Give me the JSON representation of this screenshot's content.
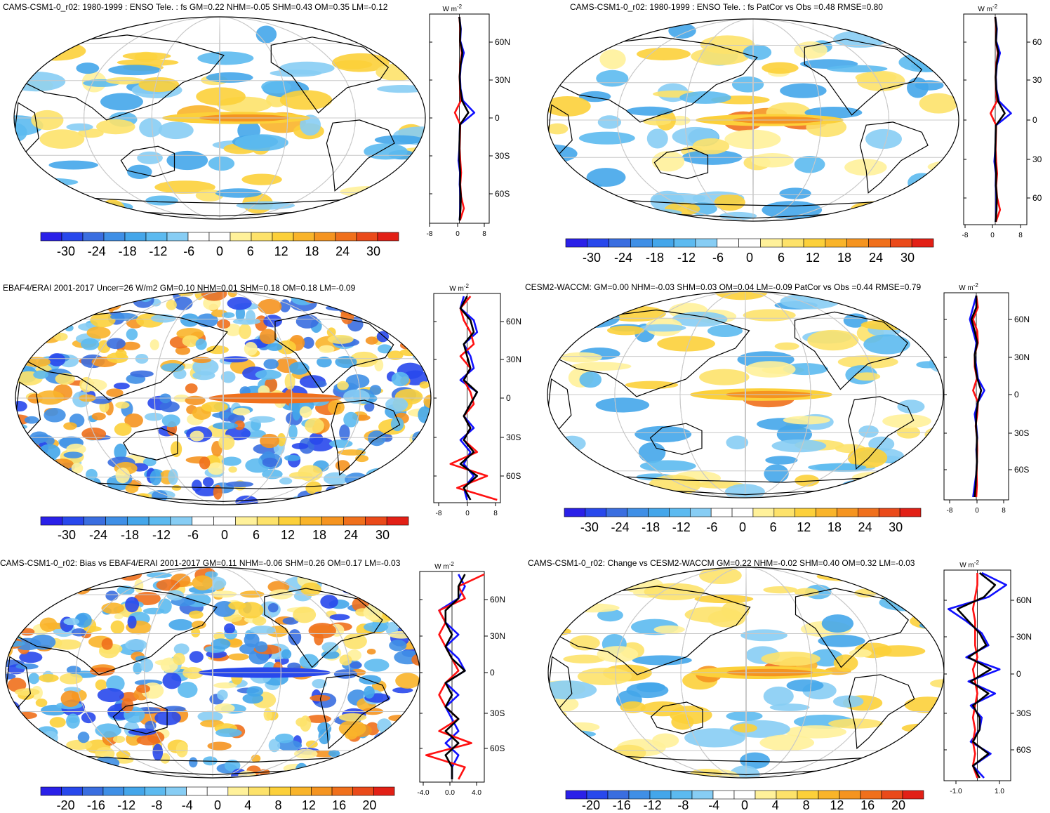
{
  "chart_data": [
    {
      "type": "heatmap",
      "title": "CAMS-CSM1-0_r02: 1980-1999 : ENSO Tele. : fs GM=0.22 NHM=-0.05 SHM=0.43 OM=0.35 LM=-0.12",
      "colorbar_ticks": [
        "-30",
        "-24",
        "-18",
        "-12",
        "-6",
        "0",
        "6",
        "12",
        "18",
        "24",
        "30"
      ],
      "levels_max": 30,
      "zonal": {
        "unit_label": "W m",
        "unit_exp": "-2",
        "lat_ticks": [
          "60N",
          "30N",
          "0",
          "30S",
          "60S"
        ],
        "x_ticks": [
          "-8",
          "0",
          "8"
        ],
        "xlim": [
          -10,
          10
        ],
        "series": [
          {
            "name": "blue",
            "color": "#1010ff",
            "values": [
              0,
              0.5,
              0.3,
              1.5,
              0.5,
              0.2,
              0.4,
              1.2,
              5.0,
              0.2,
              0.1,
              0,
              -0.3,
              0.2,
              0.1,
              0.4,
              0.3,
              0.1
            ]
          },
          {
            "name": "red",
            "color": "#ff1010",
            "values": [
              0,
              0.3,
              0.2,
              0.8,
              0.3,
              0.1,
              0.2,
              0.5,
              -1.5,
              0.3,
              0.2,
              0.1,
              0.3,
              0.6,
              0.3,
              0.6,
              1.5,
              0.2
            ]
          },
          {
            "name": "black",
            "color": "#000000",
            "values": [
              0,
              0.4,
              0.2,
              1.0,
              0.4,
              0.1,
              0.3,
              0.9,
              3.0,
              0.2,
              0.1,
              0,
              0,
              0.3,
              0.2,
              0.5,
              0.4,
              0.1
            ]
          }
        ]
      }
    },
    {
      "type": "heatmap",
      "title": "CAMS-CSM1-0_r02: 1980-1999 : ENSO Tele. : fs PatCor vs Obs =0.48 RMSE=0.80",
      "colorbar_ticks": [
        "-30",
        "-24",
        "-18",
        "-12",
        "-6",
        "0",
        "6",
        "12",
        "18",
        "24",
        "30"
      ],
      "levels_max": 30,
      "zonal": {
        "unit_label": "W m",
        "unit_exp": "-2",
        "lat_ticks": [
          "60",
          "30",
          "0",
          "30",
          "60"
        ],
        "x_ticks": [
          "-8",
          "0",
          "8"
        ],
        "xlim": [
          -10,
          10
        ],
        "series": [
          {
            "name": "blue",
            "color": "#1010ff",
            "values": [
              0,
              0.5,
              0.3,
              1.5,
              0.5,
              0.2,
              0.4,
              1.2,
              5.0,
              0.2,
              0.1,
              0,
              -0.3,
              0.2,
              0.1,
              0.4,
              0.3,
              0.1
            ]
          },
          {
            "name": "red",
            "color": "#ff1010",
            "values": [
              0,
              0.3,
              0.2,
              0.8,
              0.3,
              0.1,
              0.2,
              0.5,
              -1.5,
              0.3,
              0.2,
              0.1,
              0.3,
              0.6,
              0.3,
              0.6,
              1.5,
              0.2
            ]
          },
          {
            "name": "black",
            "color": "#000000",
            "values": [
              0,
              0.4,
              0.2,
              1.0,
              0.4,
              0.1,
              0.3,
              0.9,
              3.0,
              0.2,
              0.1,
              0,
              0,
              0.3,
              0.2,
              0.5,
              0.4,
              0.1
            ]
          }
        ]
      }
    },
    {
      "type": "heatmap",
      "title": "EBAF4/ERAI 2001-2017 Uncer=26 W/m2 GM=0.10 NHM=0.01 SHM=0.18 OM=0.18 LM=-0.09",
      "colorbar_ticks": [
        "-30",
        "-24",
        "-18",
        "-12",
        "-6",
        "0",
        "6",
        "12",
        "18",
        "24",
        "30"
      ],
      "levels_max": 30,
      "zonal": {
        "unit_label": "W m",
        "unit_exp": "-2",
        "lat_ticks": [
          "60N",
          "30N",
          "0",
          "30S",
          "60S"
        ],
        "x_ticks": [
          "-8",
          "0",
          "8"
        ],
        "xlim": [
          -10,
          10
        ],
        "series": [
          {
            "name": "blue",
            "color": "#1010ff",
            "values": [
              -1,
              -2,
              2,
              3,
              -1,
              1,
              2,
              -2,
              3,
              1,
              -1,
              2,
              -2,
              1,
              -1,
              2,
              -1,
              0
            ]
          },
          {
            "name": "red",
            "color": "#ff1010",
            "values": [
              1,
              -2,
              -1,
              1,
              2,
              -2,
              1,
              -1,
              1,
              2,
              -1,
              1,
              -1,
              3,
              -5,
              6,
              -3,
              9
            ]
          },
          {
            "name": "black",
            "color": "#000000",
            "values": [
              0,
              -2,
              1,
              2,
              -1,
              0,
              1,
              -1,
              3,
              1,
              -1,
              1,
              -1,
              2,
              -2,
              3,
              -1,
              1
            ]
          }
        ]
      }
    },
    {
      "type": "heatmap",
      "title": "CESM2-WACCM: GM=0.00 NHM=-0.03 SHM=0.03 OM=0.04 LM=-0.09 PatCor vs Obs =0.44 RMSE=0.79",
      "colorbar_ticks": [
        "-30",
        "-24",
        "-18",
        "-12",
        "-6",
        "0",
        "6",
        "12",
        "18",
        "24",
        "30"
      ],
      "levels_max": 30,
      "zonal": {
        "unit_label": "W m",
        "unit_exp": "-2",
        "lat_ticks": [
          "60N",
          "30N",
          "0",
          "30S",
          "60S"
        ],
        "x_ticks": [
          "-8",
          "0",
          "8"
        ],
        "xlim": [
          -10,
          10
        ],
        "series": [
          {
            "name": "blue",
            "color": "#1010ff",
            "values": [
              0,
              -1,
              -2,
              -1,
              0,
              -0.5,
              0,
              0.5,
              2.5,
              0.5,
              -0.5,
              0,
              0.3,
              0,
              0.2,
              0,
              -0.5,
              -1
            ]
          },
          {
            "name": "red",
            "color": "#ff1010",
            "values": [
              0,
              0.5,
              -1,
              0.3,
              0.5,
              -0.5,
              -0.5,
              0.2,
              -1,
              0.5,
              0.3,
              -0.2,
              0.2,
              0.3,
              0.2,
              0.1,
              0.2,
              0
            ]
          },
          {
            "name": "black",
            "color": "#000000",
            "values": [
              0,
              0,
              -1.5,
              -0.5,
              0.3,
              -0.5,
              -0.3,
              0.3,
              1.5,
              0.5,
              0,
              -0.1,
              0.2,
              0.1,
              0.2,
              0,
              -0.2,
              -0.5
            ]
          }
        ]
      }
    },
    {
      "type": "heatmap",
      "title": "CAMS-CSM1-0_r02: Bias vs EBAF4/ERAI 2001-2017 GM=0.11 NHM=-0.06 SHM=0.26 OM=0.17 LM=-0.03",
      "colorbar_ticks": [
        "-20",
        "-16",
        "-12",
        "-8",
        "-4",
        "0",
        "4",
        "8",
        "12",
        "16",
        "20"
      ],
      "levels_max": 20,
      "zonal": {
        "unit_label": "W m",
        "unit_exp": "-2",
        "lat_ticks": [
          "60N",
          "30N",
          "0",
          "30S",
          "60S"
        ],
        "x_ticks": [
          "-4.0",
          "0.0",
          "4.0"
        ],
        "xlim": [
          -5,
          5
        ],
        "series": [
          {
            "name": "blue",
            "color": "#1010ff",
            "values": [
              1,
              2,
              1,
              -2,
              -1,
              1,
              -1,
              1,
              2,
              -1,
              1,
              -1,
              0,
              1,
              -1,
              1,
              0,
              0
            ]
          },
          {
            "name": "red",
            "color": "#ff1010",
            "values": [
              5,
              1,
              2,
              -2,
              -1,
              -2,
              -1,
              0,
              1,
              -1,
              -2,
              -1,
              1,
              -2,
              3,
              -4,
              2,
              1
            ]
          },
          {
            "name": "black",
            "color": "#000000",
            "values": [
              2,
              1,
              1,
              -1,
              -1,
              0,
              -1,
              0,
              2,
              -1,
              0,
              -1,
              1,
              -1,
              1,
              -1,
              0,
              0
            ]
          }
        ]
      }
    },
    {
      "type": "heatmap",
      "title": "CAMS-CSM1-0_r02: Change vs CESM2-WACCM GM=0.22 NHM=-0.02 SHM=0.40 OM=0.32 LM=-0.03",
      "colorbar_ticks": [
        "-20",
        "-16",
        "-12",
        "-8",
        "-4",
        "0",
        "4",
        "8",
        "12",
        "16",
        "20"
      ],
      "levels_max": 20,
      "zonal": {
        "unit_label": "W m",
        "unit_exp": "-2",
        "lat_ticks": [
          "60N",
          "30N",
          "0",
          "30S",
          "60S"
        ],
        "x_ticks": [
          "-1.0",
          "1.0"
        ],
        "xlim": [
          -1.5,
          1.5
        ],
        "series": [
          {
            "name": "blue",
            "color": "#1010ff",
            "values": [
              0.2,
              1.3,
              0.5,
              -1.3,
              -0.5,
              0.2,
              0.5,
              -0.5,
              1.0,
              -0.4,
              0.8,
              -0.3,
              0.2,
              0.1,
              -0.3,
              0.6,
              -0.2,
              0.3
            ]
          },
          {
            "name": "red",
            "color": "#ff1010",
            "values": [
              0,
              0,
              -0.1,
              -0.2,
              -0.1,
              -0.1,
              -0.1,
              0,
              -0.2,
              -0.1,
              0,
              -0.1,
              -0.2,
              -0.1,
              -0.2,
              -0.1,
              -0.2,
              0
            ]
          },
          {
            "name": "black",
            "color": "#000000",
            "values": [
              0.1,
              0.8,
              0.3,
              -0.9,
              -0.4,
              0.1,
              0.4,
              -0.4,
              0.6,
              -0.3,
              0.5,
              -0.2,
              0.1,
              0.1,
              -0.2,
              0.5,
              -0.2,
              0.1
            ]
          }
        ]
      }
    }
  ]
}
